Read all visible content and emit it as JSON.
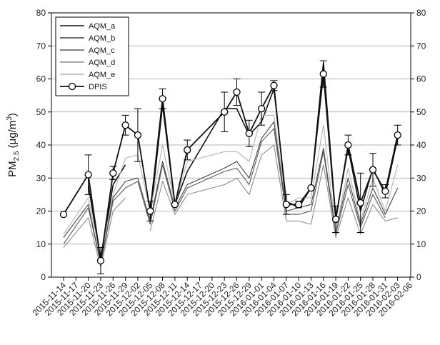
{
  "chart_data": {
    "type": "line",
    "ylabel": {
      "main": "PM",
      "sub": "2.5",
      "unit_open": " (μg/m",
      "unit_sup": "3",
      "unit_close": ")"
    },
    "ylim": [
      0,
      80
    ],
    "yticks": [
      0,
      10,
      20,
      30,
      40,
      50,
      60,
      70,
      80
    ],
    "secondary_y_axis": true,
    "grid": "horizontal",
    "legend_position": "top-left",
    "x_tick_labels": [
      "2015-11-14",
      "2015-11-17",
      "2015-11-20",
      "2015-11-23",
      "2015-11-26",
      "2015-11-29",
      "2015-12-02",
      "2015-12-05",
      "2015-12-08",
      "2015-12-11",
      "2015-12-14",
      "2015-12-17",
      "2015-12-20",
      "2015-12-23",
      "2015-12-26",
      "2015-12-29",
      "2016-01-01",
      "2016-01-04",
      "2016-01-07",
      "2016-01-10",
      "2016-01-13",
      "2016-01-16",
      "2016-01-19",
      "2016-01-22",
      "2016-01-25",
      "2016-01-28",
      "2016-01-31",
      "2016-02-03",
      "2016-02-06"
    ],
    "x": [
      "2015-11-14",
      "2015-11-20",
      "2015-11-23",
      "2015-11-26",
      "2015-11-29",
      "2015-12-02",
      "2015-12-05",
      "2015-12-08",
      "2015-12-11",
      "2015-12-14",
      "2015-12-23",
      "2015-12-26",
      "2015-12-29",
      "2016-01-01",
      "2016-01-04",
      "2016-01-07",
      "2016-01-10",
      "2016-01-13",
      "2016-01-16",
      "2016-01-19",
      "2016-01-22",
      "2016-01-25",
      "2016-01-28",
      "2016-01-31",
      "2016-02-03",
      "2016-02-05"
    ],
    "series": [
      {
        "name": "AQM_a",
        "color": "#111111",
        "values": [
          null,
          28,
          5,
          28,
          34,
          null,
          18,
          52,
          22,
          32,
          51,
          51,
          43,
          47,
          57,
          23,
          21,
          27,
          65,
          18,
          39,
          20,
          33,
          25,
          42,
          null
        ]
      },
      {
        "name": "AQM_b",
        "color": "#444444",
        "values": [
          12,
          22,
          4,
          24,
          29,
          30,
          17,
          35,
          21,
          28,
          33,
          35,
          30,
          42,
          47,
          20,
          21,
          22,
          39,
          14,
          30,
          16,
          27,
          19,
          27,
          null
        ]
      },
      {
        "name": "AQM_c",
        "color": "#5a5a5a",
        "values": [
          10,
          21,
          4,
          23,
          27,
          29,
          16,
          34,
          20,
          27,
          32,
          33,
          28,
          41,
          45,
          19,
          19,
          20,
          38,
          13,
          28,
          15,
          25,
          18,
          null,
          28
        ]
      },
      {
        "name": "AQM_d",
        "color": "#8c8c8c",
        "values": [
          9,
          18,
          3,
          20,
          24,
          null,
          14,
          29,
          19,
          25,
          28,
          30,
          25,
          37,
          40,
          17,
          17,
          16,
          34,
          12,
          24,
          13,
          22,
          17,
          18,
          null
        ]
      },
      {
        "name": "AQM_e",
        "color": "#b4b4b4",
        "values": [
          13,
          24,
          6,
          25,
          36,
          37,
          20,
          40,
          22,
          35,
          38,
          38,
          35,
          49,
          49,
          22,
          24,
          24,
          46,
          14,
          33,
          17,
          30,
          20,
          34,
          null
        ]
      },
      {
        "name": "DPIS",
        "color": "#111111",
        "marker": "circle",
        "values": [
          19,
          31,
          5,
          31.5,
          46,
          43,
          20,
          54,
          22,
          38.5,
          50,
          56,
          43.5,
          51,
          58,
          22,
          22,
          27,
          61.5,
          17.5,
          40,
          22.5,
          32.5,
          26,
          43,
          null
        ],
        "error": [
          0,
          6,
          4,
          2,
          3,
          8,
          3,
          3,
          0,
          3,
          6,
          4,
          4,
          5,
          1.5,
          3,
          1,
          0,
          4,
          4,
          3,
          9,
          5,
          2,
          3,
          null
        ]
      }
    ]
  }
}
